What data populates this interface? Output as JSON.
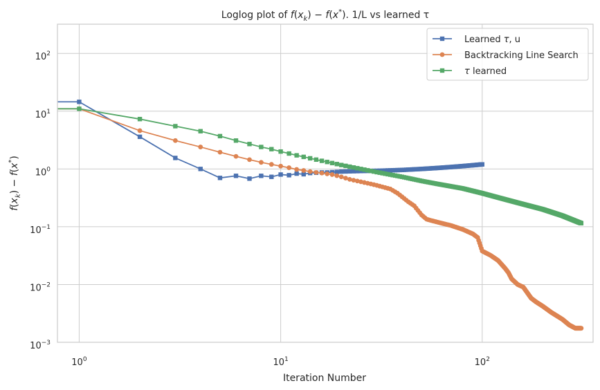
{
  "chart_data": {
    "type": "line",
    "title": "Loglog plot of f(x_k) − f(x*). 1/L vs learned τ",
    "title_parts": [
      "Loglog plot of ",
      "f",
      "(",
      "x",
      "k",
      ") − ",
      "f",
      "(",
      "x",
      "*",
      "). 1/L vs learned ",
      "τ"
    ],
    "xlabel": "Iteration Number",
    "ylabel": "f(x_k) − f(x*)",
    "ylabel_parts": [
      "f",
      "(",
      "x",
      "k",
      ") − ",
      "f",
      "(",
      "x",
      "*",
      ")"
    ],
    "xscale": "log",
    "yscale": "log",
    "xlim": [
      0.78,
      355
    ],
    "ylim": [
      0.001,
      320
    ],
    "xticks": [
      1,
      10,
      100
    ],
    "xtick_labels": [
      {
        "base": "10",
        "exp": "0"
      },
      {
        "base": "10",
        "exp": "1"
      },
      {
        "base": "10",
        "exp": "2"
      }
    ],
    "yticks": [
      0.001,
      0.01,
      0.1,
      1,
      10,
      100
    ],
    "ytick_labels": [
      {
        "base": "10",
        "exp": "−3"
      },
      {
        "base": "10",
        "exp": "−2"
      },
      {
        "base": "10",
        "exp": "−1"
      },
      {
        "base": "10",
        "exp": "0"
      },
      {
        "base": "10",
        "exp": "1"
      },
      {
        "base": "10",
        "exp": "2"
      }
    ],
    "grid": true,
    "legend_position": "top-right",
    "series": [
      {
        "name": "Learned τ, u",
        "legend_parts": [
          "Learned ",
          "τ",
          ", u"
        ],
        "color": "#4c72b0",
        "marker": "square",
        "x": [
          0,
          1,
          2,
          3,
          4,
          5,
          6,
          7,
          8,
          9,
          10,
          11,
          12,
          13,
          14,
          15,
          16,
          17,
          18,
          19,
          20,
          25,
          30,
          40,
          50,
          60,
          70,
          80,
          90,
          100
        ],
        "y": [
          14.5,
          14.5,
          3.6,
          1.55,
          1.0,
          0.7,
          0.76,
          0.68,
          0.76,
          0.73,
          0.8,
          0.78,
          0.83,
          0.81,
          0.85,
          0.86,
          0.87,
          0.87,
          0.88,
          0.89,
          0.9,
          0.92,
          0.93,
          0.96,
          1.0,
          1.04,
          1.08,
          1.12,
          1.16,
          1.2
        ]
      },
      {
        "name": "Backtracking Line Search",
        "legend_parts": [
          "Backtracking Line Search"
        ],
        "color": "#dd8452",
        "marker": "circle",
        "x": [
          0,
          1,
          2,
          3,
          4,
          5,
          6,
          7,
          8,
          9,
          10,
          11,
          12,
          13,
          14,
          15,
          16,
          18,
          20,
          22,
          25,
          28,
          30,
          35,
          38,
          40,
          43,
          46,
          50,
          53,
          55,
          60,
          70,
          80,
          90,
          95,
          100,
          110,
          120,
          130,
          135,
          140,
          150,
          160,
          175,
          185,
          200,
          220,
          250,
          270,
          290,
          300,
          310
        ],
        "y": [
          11,
          11,
          4.6,
          3.1,
          2.4,
          1.95,
          1.65,
          1.45,
          1.3,
          1.2,
          1.12,
          1.05,
          0.98,
          0.94,
          0.9,
          0.87,
          0.85,
          0.8,
          0.73,
          0.66,
          0.6,
          0.55,
          0.52,
          0.45,
          0.38,
          0.33,
          0.27,
          0.23,
          0.16,
          0.135,
          0.13,
          0.12,
          0.105,
          0.09,
          0.075,
          0.065,
          0.038,
          0.032,
          0.026,
          0.019,
          0.016,
          0.0125,
          0.01,
          0.009,
          0.0058,
          0.005,
          0.0042,
          0.0033,
          0.0025,
          0.002,
          0.00175,
          0.00175,
          0.00175
        ]
      },
      {
        "name": "τ learned",
        "legend_parts": [
          "τ",
          " learned"
        ],
        "color": "#55a868",
        "marker": "square",
        "x": [
          0,
          1,
          2,
          3,
          4,
          5,
          6,
          7,
          8,
          9,
          10,
          12,
          15,
          20,
          30,
          40,
          50,
          60,
          70,
          80,
          100,
          120,
          150,
          200,
          250,
          300,
          310
        ],
        "y": [
          11,
          11,
          7.3,
          5.5,
          4.5,
          3.7,
          3.1,
          2.7,
          2.4,
          2.2,
          2.0,
          1.72,
          1.45,
          1.17,
          0.88,
          0.73,
          0.62,
          0.55,
          0.5,
          0.46,
          0.38,
          0.32,
          0.26,
          0.2,
          0.155,
          0.12,
          0.115
        ]
      }
    ]
  }
}
